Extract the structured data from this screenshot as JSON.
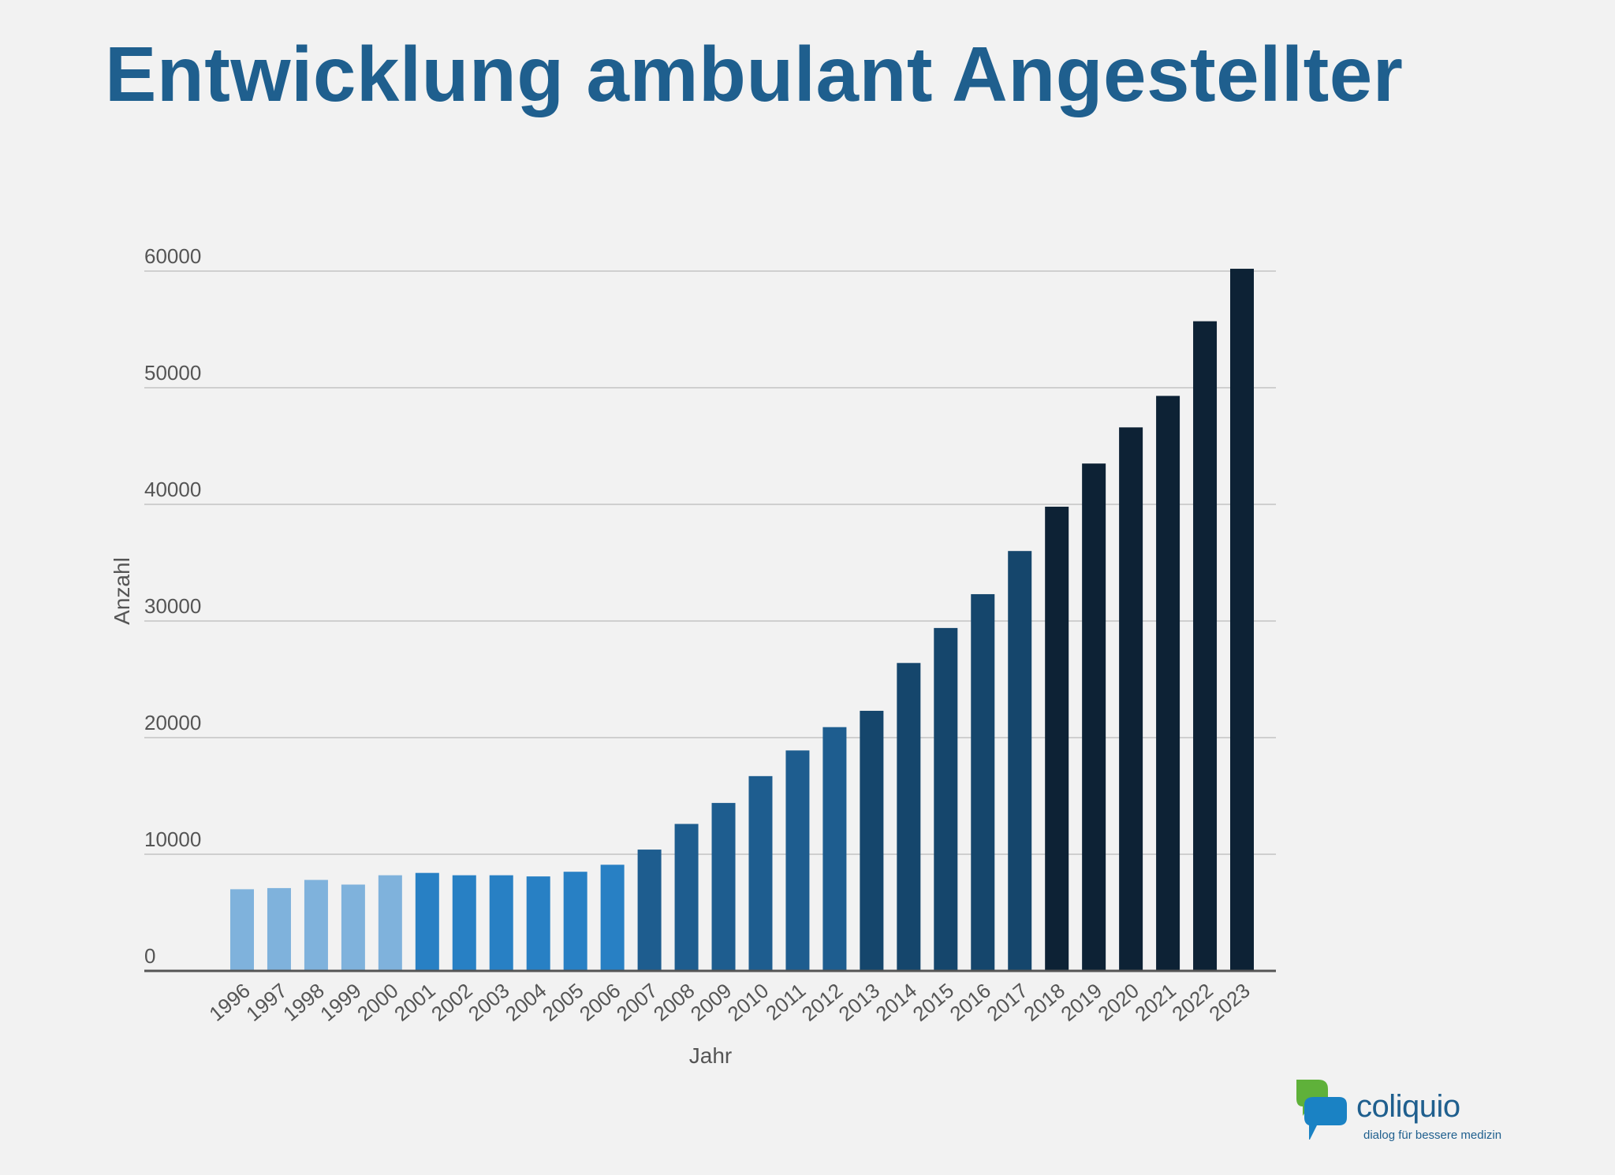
{
  "title": "Entwicklung ambulant Angestellter",
  "chart_data": {
    "type": "bar",
    "title": "Entwicklung ambulant Angestellter",
    "xlabel": "Jahr",
    "ylabel": "Anzahl",
    "ylim": [
      0,
      60000
    ],
    "yticks": [
      0,
      10000,
      20000,
      30000,
      40000,
      50000,
      60000
    ],
    "grid": true,
    "categories": [
      "1996",
      "1997",
      "1998",
      "1999",
      "2000",
      "2001",
      "2002",
      "2003",
      "2004",
      "2005",
      "2006",
      "2007",
      "2008",
      "2009",
      "2010",
      "2011",
      "2012",
      "2013",
      "2014",
      "2015",
      "2016",
      "2017",
      "2018",
      "2019",
      "2020",
      "2021",
      "2022",
      "2023"
    ],
    "values": [
      7000,
      7100,
      7800,
      7400,
      8200,
      8400,
      8200,
      8200,
      8100,
      8500,
      9100,
      10400,
      12600,
      14400,
      16700,
      18900,
      20900,
      22300,
      26400,
      29400,
      32300,
      36000,
      39800,
      43500,
      46600,
      49300,
      55700,
      60200
    ],
    "bar_colors": [
      "#7fb2dc",
      "#7fb2dc",
      "#7fb2dc",
      "#7fb2dc",
      "#7fb2dc",
      "#2880c4",
      "#2880c4",
      "#2880c4",
      "#2880c4",
      "#2880c4",
      "#2880c4",
      "#1e5d8f",
      "#1e5d8f",
      "#1e5d8f",
      "#1e5d8f",
      "#1e5d8f",
      "#1e5d8f",
      "#15466c",
      "#15466c",
      "#15466c",
      "#15466c",
      "#15466c",
      "#0d2235",
      "#0d2235",
      "#0d2235",
      "#0d2235",
      "#0d2235",
      "#0d2235"
    ],
    "gridline_color": "#cfcfcf",
    "axis_color": "#555555"
  },
  "logo": {
    "name": "coliquio",
    "tagline": "dialog für bessere medizin",
    "colors": {
      "green": "#5fb13a",
      "blue": "#1a82c4",
      "text": "#1f5f8e"
    }
  }
}
